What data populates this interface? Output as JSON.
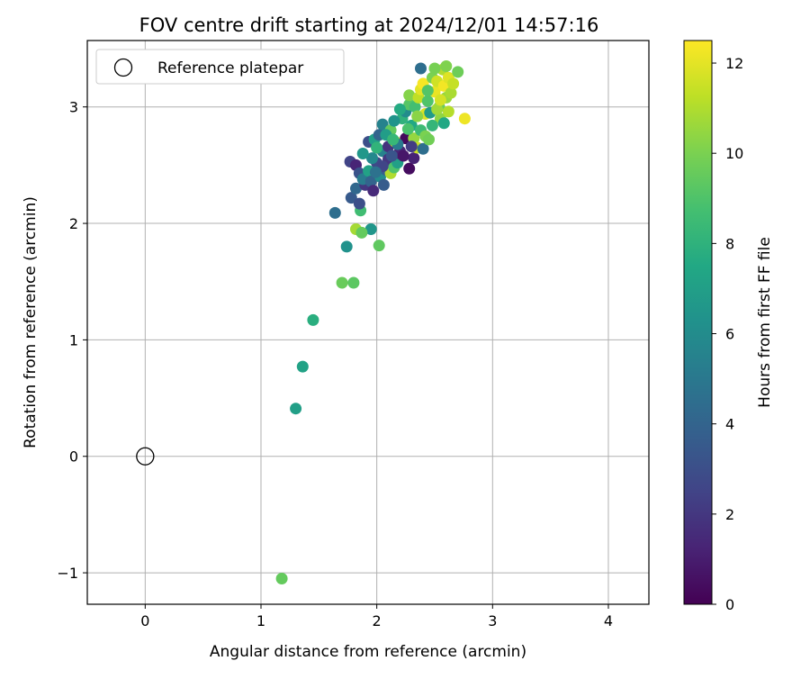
{
  "chart_data": {
    "type": "scatter",
    "title": "FOV centre drift starting at 2024/12/01 14:57:16",
    "xlabel": "Angular distance from reference (arcmin)",
    "ylabel": "Rotation from reference (arcmin)",
    "xlim": [
      -0.5,
      4.35
    ],
    "ylim": [
      -1.27,
      3.57
    ],
    "x_ticks": [
      0,
      1,
      2,
      3,
      4
    ],
    "y_ticks": [
      -1,
      0,
      1,
      2,
      3
    ],
    "x_tick_labels": [
      "0",
      "1",
      "2",
      "3",
      "4"
    ],
    "y_tick_labels": [
      "−1",
      "0",
      "1",
      "2",
      "3"
    ],
    "grid": true,
    "legend": {
      "placement": "top-left",
      "entries": [
        "Reference platepar"
      ]
    },
    "colorbar": {
      "label": "Hours from first FF file",
      "range": [
        0,
        12.5
      ],
      "ticks": [
        0,
        2,
        4,
        6,
        8,
        10,
        12
      ],
      "tick_labels": [
        "0",
        "2",
        "4",
        "6",
        "8",
        "10",
        "12"
      ],
      "colormap": "viridis"
    },
    "reference_point": {
      "x": 0,
      "y": 0
    },
    "points": [
      [
        1.18,
        -1.05,
        9.5
      ],
      [
        1.3,
        0.41,
        7.0
      ],
      [
        1.36,
        0.77,
        7.2
      ],
      [
        1.45,
        1.17,
        7.8
      ],
      [
        1.7,
        1.49,
        9.6
      ],
      [
        1.8,
        1.49,
        9.3
      ],
      [
        2.02,
        1.81,
        9.4
      ],
      [
        1.74,
        1.8,
        6.3
      ],
      [
        1.95,
        1.95,
        6.5
      ],
      [
        1.82,
        1.95,
        10.8
      ],
      [
        1.87,
        1.92,
        9.5
      ],
      [
        1.64,
        2.09,
        4.5
      ],
      [
        1.86,
        2.11,
        8.6
      ],
      [
        1.78,
        2.22,
        3.5
      ],
      [
        1.82,
        2.3,
        4.2
      ],
      [
        1.9,
        2.33,
        2.0
      ],
      [
        1.85,
        2.17,
        3.0
      ],
      [
        1.77,
        2.53,
        2.5
      ],
      [
        1.82,
        2.5,
        1.3
      ],
      [
        1.85,
        2.43,
        3.2
      ],
      [
        1.88,
        2.38,
        5.2
      ],
      [
        1.93,
        2.45,
        7.2
      ],
      [
        1.95,
        2.36,
        4.0
      ],
      [
        1.97,
        2.28,
        1.5
      ],
      [
        2.0,
        2.52,
        2.8
      ],
      [
        2.03,
        2.4,
        6.0
      ],
      [
        2.05,
        2.62,
        5.5
      ],
      [
        2.08,
        2.46,
        3.8
      ],
      [
        2.1,
        2.55,
        2.0
      ],
      [
        2.12,
        2.43,
        11.0
      ],
      [
        2.15,
        2.48,
        9.0
      ],
      [
        2.18,
        2.52,
        7.0
      ],
      [
        2.2,
        2.6,
        1.6
      ],
      [
        2.25,
        2.73,
        0.3
      ],
      [
        2.28,
        2.47,
        0.4
      ],
      [
        2.32,
        2.56,
        1.2
      ],
      [
        1.93,
        2.7,
        3.0
      ],
      [
        1.98,
        2.72,
        7.0
      ],
      [
        2.02,
        2.76,
        4.0
      ],
      [
        2.05,
        2.85,
        5.5
      ],
      [
        2.1,
        2.66,
        1.8
      ],
      [
        2.12,
        2.8,
        9.5
      ],
      [
        2.16,
        2.7,
        11.2
      ],
      [
        2.2,
        2.62,
        1.4
      ],
      [
        2.22,
        2.9,
        8.0
      ],
      [
        2.25,
        2.96,
        6.0
      ],
      [
        2.28,
        3.02,
        9.2
      ],
      [
        2.3,
        2.84,
        7.5
      ],
      [
        2.32,
        2.73,
        10.5
      ],
      [
        2.35,
        2.65,
        11.5
      ],
      [
        2.38,
        2.8,
        8.5
      ],
      [
        2.4,
        2.64,
        4.5
      ],
      [
        2.42,
        2.75,
        10.0
      ],
      [
        2.45,
        2.72,
        9.8
      ],
      [
        2.28,
        3.1,
        10.2
      ],
      [
        2.33,
        3.0,
        8.7
      ],
      [
        2.36,
        3.08,
        11.3
      ],
      [
        2.38,
        3.15,
        12.0
      ],
      [
        2.4,
        3.2,
        12.4
      ],
      [
        2.42,
        2.94,
        11.8
      ],
      [
        2.44,
        3.05,
        9.0
      ],
      [
        2.46,
        2.95,
        6.8
      ],
      [
        2.48,
        3.25,
        10.0
      ],
      [
        2.5,
        3.13,
        12.1
      ],
      [
        2.52,
        3.22,
        11.6
      ],
      [
        2.54,
        3.0,
        9.6
      ],
      [
        2.55,
        2.9,
        10.4
      ],
      [
        2.57,
        3.32,
        11.0
      ],
      [
        2.58,
        3.18,
        12.3
      ],
      [
        2.6,
        3.08,
        10.6
      ],
      [
        2.62,
        3.25,
        11.9
      ],
      [
        2.64,
        3.12,
        10.9
      ],
      [
        2.58,
        2.86,
        7.5
      ],
      [
        2.66,
        3.2,
        11.4
      ],
      [
        2.7,
        3.3,
        9.7
      ],
      [
        2.76,
        2.9,
        12.2
      ],
      [
        2.38,
        3.33,
        4.5
      ],
      [
        2.5,
        3.33,
        9.9
      ],
      [
        2.6,
        3.35,
        10.1
      ],
      [
        2.2,
        2.98,
        7.6
      ],
      [
        2.15,
        2.88,
        6.4
      ],
      [
        2.08,
        2.76,
        6.9
      ],
      [
        2.0,
        2.65,
        8.1
      ],
      [
        1.96,
        2.56,
        5.8
      ],
      [
        2.27,
        2.81,
        8.9
      ],
      [
        2.35,
        2.92,
        10.3
      ],
      [
        2.44,
        3.14,
        9.1
      ],
      [
        2.52,
        2.98,
        10.7
      ],
      [
        2.48,
        2.84,
        8.2
      ],
      [
        2.55,
        3.06,
        11.7
      ],
      [
        2.62,
        2.96,
        11.1
      ],
      [
        2.05,
        2.49,
        2.6
      ],
      [
        2.13,
        2.58,
        3.3
      ],
      [
        2.18,
        2.68,
        5.1
      ],
      [
        1.88,
        2.6,
        6.6
      ],
      [
        2.23,
        2.58,
        0.8
      ],
      [
        2.3,
        2.66,
        2.2
      ],
      [
        2.14,
        2.72,
        8.3
      ],
      [
        1.99,
        2.44,
        4.7
      ],
      [
        2.06,
        2.33,
        3.6
      ]
    ]
  }
}
